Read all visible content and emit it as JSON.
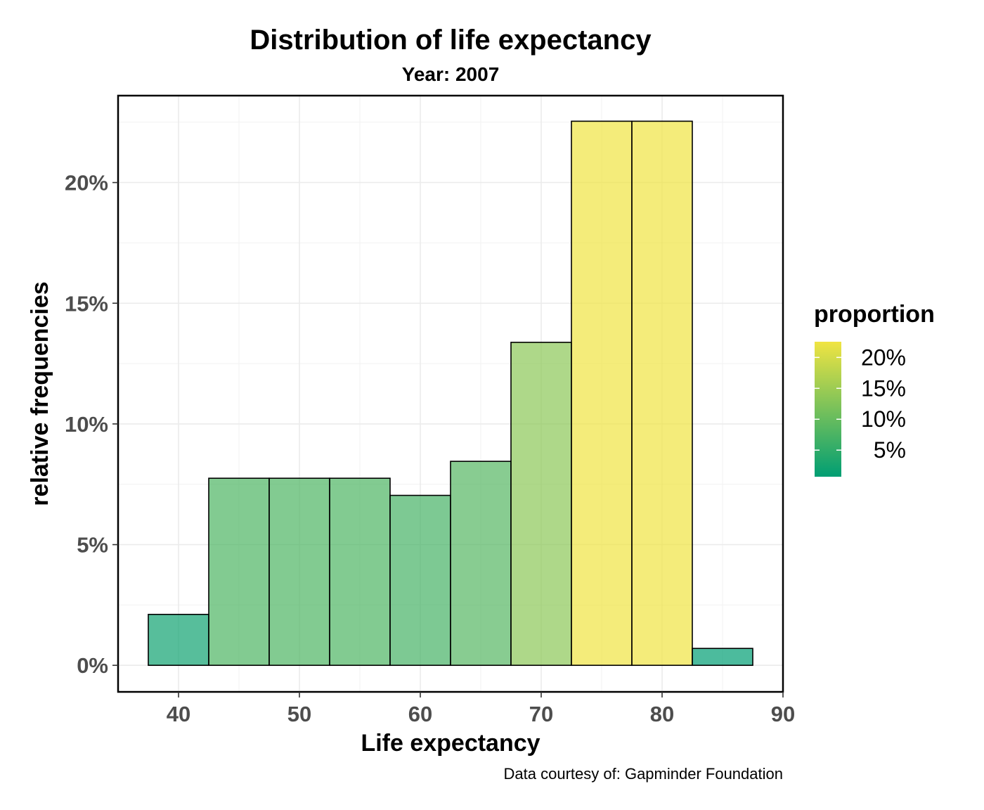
{
  "chart_data": {
    "type": "bar",
    "title": "Distribution of life expectancy",
    "subtitle": "Year: 2007",
    "xlabel": "Life expectancy",
    "ylabel": "relative frequencies",
    "caption": "Data courtesy of: Gapminder Foundation",
    "xlim": [
      35,
      90
    ],
    "ylim": [
      -0.011,
      0.236
    ],
    "x_ticks": [
      40,
      50,
      60,
      70,
      80,
      90
    ],
    "x_tick_labels": [
      "40",
      "50",
      "60",
      "70",
      "80",
      "90"
    ],
    "y_ticks": [
      0,
      0.05,
      0.1,
      0.15,
      0.2
    ],
    "y_tick_labels": [
      "0%",
      "5%",
      "10%",
      "15%",
      "20%"
    ],
    "bin_width": 5,
    "bins": [
      {
        "x_start": 37.5,
        "x_end": 42.5,
        "proportion": 0.0211
      },
      {
        "x_start": 42.5,
        "x_end": 47.5,
        "proportion": 0.0775
      },
      {
        "x_start": 47.5,
        "x_end": 52.5,
        "proportion": 0.0775
      },
      {
        "x_start": 52.5,
        "x_end": 57.5,
        "proportion": 0.0775
      },
      {
        "x_start": 57.5,
        "x_end": 62.5,
        "proportion": 0.0704
      },
      {
        "x_start": 62.5,
        "x_end": 67.5,
        "proportion": 0.0845
      },
      {
        "x_start": 67.5,
        "x_end": 72.5,
        "proportion": 0.1338
      },
      {
        "x_start": 72.5,
        "x_end": 77.5,
        "proportion": 0.2254
      },
      {
        "x_start": 77.5,
        "x_end": 82.5,
        "proportion": 0.2254
      },
      {
        "x_start": 82.5,
        "x_end": 87.5,
        "proportion": 0.007
      }
    ],
    "grid": true,
    "legend": {
      "title": "proportion",
      "position": "right",
      "type": "colorbar",
      "range": [
        0.007,
        0.2254
      ],
      "ticks": [
        0.05,
        0.1,
        0.15,
        0.2
      ],
      "tick_labels": [
        "5%",
        "10%",
        "15%",
        "20%"
      ],
      "color_low": "#009E73",
      "color_high": "#F0E442"
    },
    "bar_opacity": 0.7,
    "bar_outline": "#000000"
  }
}
